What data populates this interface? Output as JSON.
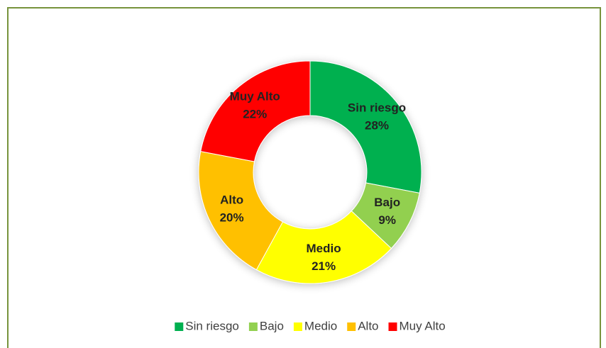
{
  "chart_data": {
    "type": "donut",
    "categories": [
      "Sin riesgo",
      "Bajo",
      "Medio",
      "Alto",
      "Muy Alto"
    ],
    "values": [
      28,
      9,
      21,
      20,
      22
    ],
    "value_labels": [
      "28%",
      "9%",
      "21%",
      "20%",
      "22%"
    ],
    "colors": [
      "#00b050",
      "#92d050",
      "#ffff00",
      "#ffc000",
      "#ff0000"
    ],
    "legend": "bottom"
  }
}
